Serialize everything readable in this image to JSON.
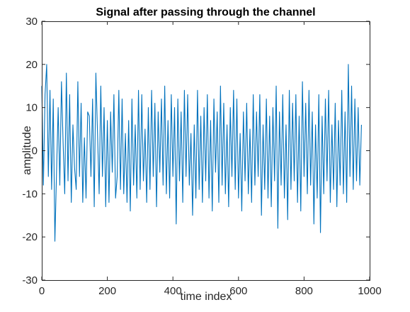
{
  "chart_data": {
    "type": "line",
    "title": "Signal after passing through the channel",
    "xlabel": "time index",
    "ylabel": "amplitude",
    "xlim": [
      0,
      1000
    ],
    "ylim": [
      -30,
      30
    ],
    "x_ticks": [
      0,
      200,
      400,
      600,
      800,
      1000
    ],
    "y_ticks": [
      -30,
      -20,
      -10,
      0,
      10,
      20,
      30
    ],
    "grid": false,
    "legend": "none",
    "series": [
      {
        "color": "#0072BD",
        "sample_step": 5,
        "values": [
          15,
          -8,
          13,
          20,
          -6,
          14,
          -9,
          12,
          -21,
          -5,
          10,
          -8,
          16,
          2,
          -10,
          18,
          -7,
          13,
          -12,
          6,
          -4,
          -9,
          16,
          -6,
          11,
          -12,
          3,
          -11,
          9,
          8,
          -6,
          12,
          -13,
          18,
          4,
          -10,
          15,
          -6,
          10,
          -13,
          7,
          -12,
          9,
          -5,
          13,
          -11,
          -6,
          14,
          -9,
          12,
          -10,
          4,
          -12,
          7,
          -14,
          12,
          -8,
          6,
          -11,
          14,
          -9,
          13,
          -7,
          5,
          -12,
          10,
          -9,
          14,
          -6,
          11,
          -13,
          9,
          -5,
          12,
          -8,
          15,
          -10,
          7,
          -11,
          13,
          -6,
          10,
          -17,
          12,
          -7,
          9,
          -12,
          14,
          -6,
          13,
          -8,
          4,
          -15,
          6,
          -11,
          14,
          -9,
          8,
          -12,
          10,
          -7,
          13,
          -11,
          7,
          -14,
          12,
          -5,
          9,
          -12,
          15,
          -8,
          11,
          -10,
          6,
          -13,
          10,
          -6,
          14,
          -9,
          12,
          -11,
          4,
          -14,
          9,
          -7,
          11,
          -10,
          5,
          -12,
          13,
          -8,
          9,
          -6,
          13,
          -15,
          6,
          -9,
          12,
          -11,
          8,
          -13,
          10,
          -7,
          15,
          -18,
          9,
          -8,
          13,
          -11,
          6,
          -16,
          14,
          -9,
          11,
          -7,
          13,
          -12,
          8,
          -14,
          16,
          -6,
          11,
          -10,
          14,
          -8,
          9,
          -17,
          6,
          -11,
          13,
          -19,
          8,
          -10,
          12,
          -7,
          14,
          -12,
          6,
          -9,
          11,
          -13,
          7,
          -8,
          14,
          -10,
          9,
          -12,
          20,
          -6,
          15,
          -9,
          12,
          -7,
          10,
          -8,
          6
        ]
      }
    ]
  }
}
